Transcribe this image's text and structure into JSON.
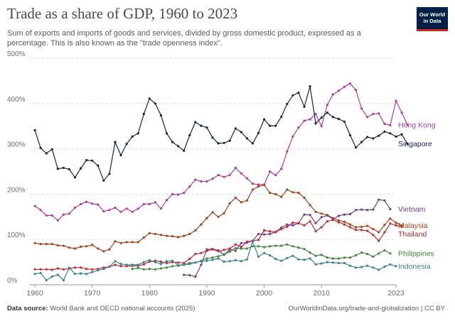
{
  "header": {
    "title": "Trade as a share of GDP, 1960 to 2023",
    "subtitle": "Sum of exports and imports of goods and services, divided by gross domestic product, expressed as a percentage. This is also known as the \"trade openness index\".",
    "logo_line1": "Our World",
    "logo_line2": "in Data"
  },
  "footer": {
    "source_label": "Data source:",
    "source_text": "World Bank and OECD national accounts (2025)",
    "right_text": "OurWorldinData.org/trade-and-globalization | CC BY"
  },
  "chart_data": {
    "type": "line",
    "title": "Trade as a share of GDP, 1960 to 2023",
    "xlabel": "",
    "ylabel": "",
    "xlim": [
      1959,
      2023
    ],
    "ylim": [
      0,
      500
    ],
    "y_ticks": [
      0,
      100,
      200,
      300,
      400,
      500
    ],
    "y_tick_labels": [
      "0%",
      "100%",
      "200%",
      "300%",
      "400%",
      "500%"
    ],
    "x_ticks": [
      1960,
      1970,
      1980,
      1990,
      2000,
      2010,
      2023
    ],
    "x_tick_labels": [
      "1960",
      "1970",
      "1980",
      "1990",
      "2000",
      "2010",
      "2023"
    ],
    "grid": "horizontal dashed",
    "legend": "labels at line ends (right)",
    "series": [
      {
        "name": "Hong Kong",
        "color": "#b13aa5",
        "start": 1960,
        "values": [
          174,
          165,
          153,
          153,
          142,
          155,
          157,
          170,
          178,
          183,
          179,
          177,
          162,
          165,
          170,
          161,
          168,
          161,
          168,
          178,
          178,
          182,
          168,
          187,
          200,
          199,
          203,
          217,
          232,
          228,
          228,
          234,
          242,
          238,
          242,
          258,
          246,
          235,
          223,
          221,
          221,
          250,
          242,
          256,
          294,
          327,
          347,
          362,
          365,
          377,
          350,
          397,
          420,
          428,
          437,
          444,
          430,
          389,
          370,
          377,
          378,
          355,
          352,
          406,
          380,
          353
        ]
      },
      {
        "name": "Singapore",
        "color": "#18234a",
        "start": 1960,
        "values": [
          341,
          302,
          290,
          299,
          256,
          258,
          255,
          237,
          257,
          275,
          274,
          263,
          230,
          245,
          315,
          286,
          311,
          327,
          334,
          377,
          411,
          400,
          374,
          334,
          315,
          306,
          296,
          330,
          359,
          351,
          347,
          325,
          312,
          313,
          318,
          345,
          337,
          323,
          312,
          335,
          365,
          351,
          351,
          371,
          399,
          418,
          424,
          393,
          438,
          356,
          369,
          380,
          370,
          366,
          360,
          330,
          303,
          315,
          326,
          323,
          329,
          338,
          334,
          327,
          332,
          311
        ]
      },
      {
        "name": "Vietnam",
        "color": "#6d3e91",
        "start": 1986,
        "values": [
          22,
          21,
          18,
          44,
          78,
          79,
          76,
          66,
          78,
          75,
          92,
          93,
          97,
          112,
          111,
          112,
          117,
          126,
          133,
          131,
          136,
          155,
          154,
          136,
          149,
          153,
          145,
          152,
          155,
          156,
          165,
          166,
          165,
          166,
          188,
          186,
          167
        ]
      },
      {
        "name": "Malaysia",
        "color": "#a2441a",
        "start": 1960,
        "values": [
          92,
          90,
          90,
          90,
          87,
          86,
          82,
          80,
          84,
          85,
          88,
          80,
          74,
          78,
          96,
          92,
          94,
          94,
          94,
          104,
          114,
          112,
          110,
          108,
          107,
          105,
          108,
          112,
          120,
          133,
          147,
          160,
          150,
          158,
          180,
          192,
          182,
          186,
          210,
          217,
          220,
          203,
          200,
          194,
          210,
          204,
          203,
          192,
          176,
          161,
          157,
          154,
          147,
          142,
          139,
          133,
          127,
          128,
          130,
          123,
          116,
          132,
          146,
          137,
          131
        ]
      },
      {
        "name": "Thailand",
        "color": "#c1292b",
        "start": 1960,
        "values": [
          34,
          34,
          34,
          33,
          36,
          34,
          36,
          38,
          38,
          35,
          34,
          35,
          38,
          40,
          44,
          41,
          41,
          42,
          42,
          45,
          51,
          53,
          51,
          48,
          50,
          49,
          48,
          57,
          68,
          70,
          75,
          78,
          74,
          77,
          80,
          89,
          84,
          95,
          97,
          99,
          120,
          118,
          116,
          123,
          128,
          137,
          136,
          131,
          140,
          118,
          127,
          140,
          143,
          138,
          133,
          127,
          121,
          121,
          119,
          110,
          97,
          116,
          135,
          131,
          128
        ]
      },
      {
        "name": "Philippines",
        "color": "#3f8837",
        "start": 1977,
        "values": [
          35,
          37,
          34,
          35,
          34,
          36,
          38,
          41,
          42,
          44,
          46,
          49,
          53,
          58,
          60,
          63,
          67,
          73,
          81,
          80,
          80,
          85,
          85,
          83,
          85,
          86,
          86,
          89,
          85,
          82,
          79,
          71,
          64,
          66,
          60,
          58,
          58,
          60,
          60,
          65,
          71,
          68,
          62,
          69,
          76,
          69
        ]
      },
      {
        "name": "Indonesia",
        "color": "#3b8393",
        "start": 1960,
        "values": [
          24,
          26,
          10,
          18,
          22,
          10,
          38,
          24,
          25,
          24,
          28,
          32,
          35,
          40,
          52,
          46,
          44,
          44,
          44,
          50,
          54,
          50,
          46,
          52,
          53,
          43,
          45,
          48,
          49,
          52,
          53,
          55,
          58,
          51,
          52,
          54,
          52,
          56,
          96,
          62,
          70,
          65,
          57,
          53,
          59,
          64,
          56,
          55,
          58,
          45,
          47,
          50,
          49,
          48,
          48,
          42,
          38,
          39,
          42,
          38,
          33,
          40,
          45,
          41
        ]
      }
    ]
  }
}
